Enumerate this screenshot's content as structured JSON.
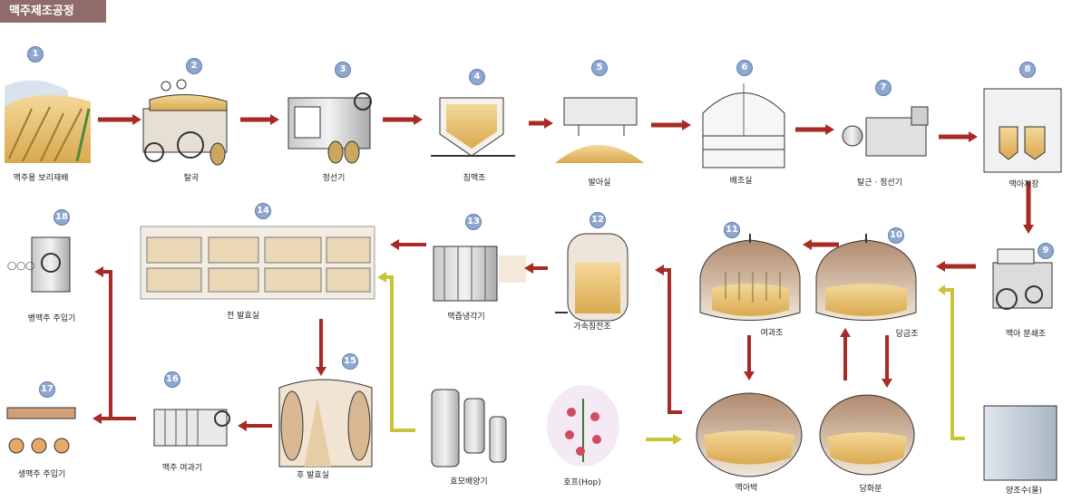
{
  "header": {
    "title": "맥주제조공정"
  },
  "steps": [
    {
      "num": "1",
      "label": "맥주용 보리재배"
    },
    {
      "num": "2",
      "label": "탈곡"
    },
    {
      "num": "3",
      "label": "정선기"
    },
    {
      "num": "4",
      "label": "침맥조"
    },
    {
      "num": "5",
      "label": "발아실"
    },
    {
      "num": "6",
      "label": "배조실"
    },
    {
      "num": "7",
      "label": "탈근 · 정선기"
    },
    {
      "num": "8",
      "label": "맥아저장"
    },
    {
      "num": "9",
      "label": "맥아 분쇄조"
    },
    {
      "num": "10",
      "label": "당금조"
    },
    {
      "num": "11",
      "label": "여과조"
    },
    {
      "num": "12",
      "label": "가속침전조"
    },
    {
      "num": "13",
      "label": "맥즙냉각기"
    },
    {
      "num": "14",
      "label": "전 발효실"
    },
    {
      "num": "15",
      "label": "후 발효실"
    },
    {
      "num": "16",
      "label": "맥주 여과기"
    },
    {
      "num": "17",
      "label": "생맥주  주입기"
    },
    {
      "num": "18",
      "label": "병맥주  주입기"
    }
  ],
  "extras": [
    {
      "label": "양조수(물)"
    },
    {
      "label": "당화분"
    },
    {
      "label": "맥아박"
    },
    {
      "label": "호프(Hop)"
    },
    {
      "label": "효모배양기"
    }
  ],
  "colors": {
    "flow_arrow": "#a82a24",
    "aux_arrow": "#c8c438",
    "badge": "#8ea7cf",
    "title_bg": "#8f6c6a"
  }
}
